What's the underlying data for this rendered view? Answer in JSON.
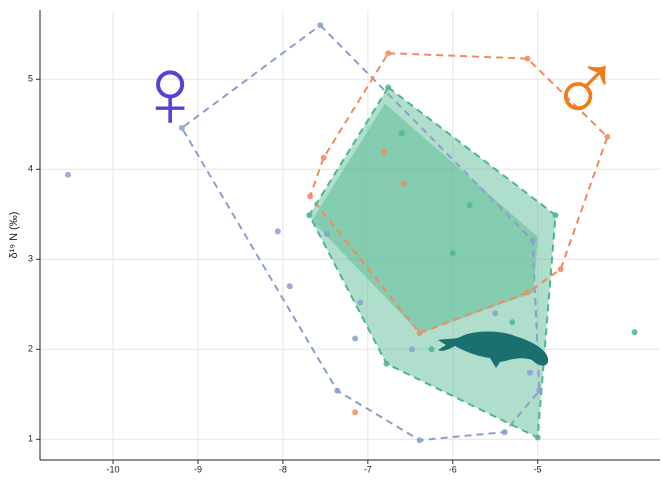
{
  "chart_data": {
    "type": "scatter",
    "ylabel": "δ¹⁹ N (‰)",
    "xlim": [
      -10.86,
      -3.56
    ],
    "ylim": [
      0.77,
      5.77
    ],
    "xticks": [
      -10,
      -9,
      -8,
      -7,
      -6,
      -5
    ],
    "yticks": [
      1,
      2,
      3,
      4,
      5
    ],
    "grid": true,
    "annotations": [
      {
        "text": "♀",
        "color": "#5b3fd6"
      },
      {
        "text": "♂",
        "color": "#f47c17"
      }
    ],
    "series": [
      {
        "color": "#8c9fcb",
        "x": [
          -10.53,
          -7.56,
          -9.19,
          -8.06,
          -7.92,
          -7.48,
          -7.15,
          -7.09,
          -7.36,
          -6.39,
          -5.39,
          -4.98,
          -5.06,
          -5.09,
          -6.48,
          -5.5
        ],
        "values": [
          3.94,
          5.6,
          4.46,
          3.31,
          2.7,
          3.28,
          2.12,
          2.52,
          1.54,
          0.99,
          1.08,
          1.54,
          3.21,
          1.74,
          2.0,
          2.4
        ],
        "hull": {
          "x": [
            -7.56,
            -5.06,
            -4.98,
            -5.39,
            -6.39,
            -7.36,
            -9.19
          ],
          "y": [
            5.6,
            3.21,
            1.54,
            1.08,
            0.99,
            1.54,
            4.46
          ]
        }
      },
      {
        "color": "#f4895f",
        "x": [
          -6.76,
          -5.12,
          -4.18,
          -4.73,
          -5.12,
          -6.39,
          -7.68,
          -7.52,
          -7.15,
          -6.81,
          -6.58
        ],
        "values": [
          5.29,
          5.23,
          4.36,
          2.89,
          2.63,
          2.18,
          3.7,
          4.13,
          1.3,
          4.19,
          3.84
        ],
        "hull": {
          "x": [
            -6.76,
            -5.12,
            -4.18,
            -4.73,
            -5.12,
            -6.39,
            -7.68,
            -7.52
          ],
          "y": [
            5.29,
            5.23,
            4.36,
            2.89,
            2.63,
            2.18,
            3.7,
            4.13
          ]
        }
      },
      {
        "color": "#4fb68f",
        "x": [
          -6.76,
          -4.79,
          -5.0,
          -6.78,
          -7.69,
          -3.86,
          -6.0,
          -6.25,
          -5.8,
          -5.3,
          -6.6
        ],
        "values": [
          4.91,
          3.49,
          1.02,
          1.84,
          3.49,
          2.19,
          3.07,
          2.0,
          3.6,
          2.3,
          4.4
        ],
        "hull": {
          "x": [
            -6.76,
            -4.79,
            -5.0,
            -6.78,
            -7.69
          ],
          "y": [
            4.91,
            3.49,
            1.02,
            1.84,
            3.49
          ]
        },
        "inner_hull": {
          "x": [
            -7.66,
            -6.8,
            -5.0,
            -5.05,
            -6.39
          ],
          "y": [
            3.43,
            4.73,
            3.25,
            2.63,
            2.18
          ]
        }
      }
    ]
  }
}
